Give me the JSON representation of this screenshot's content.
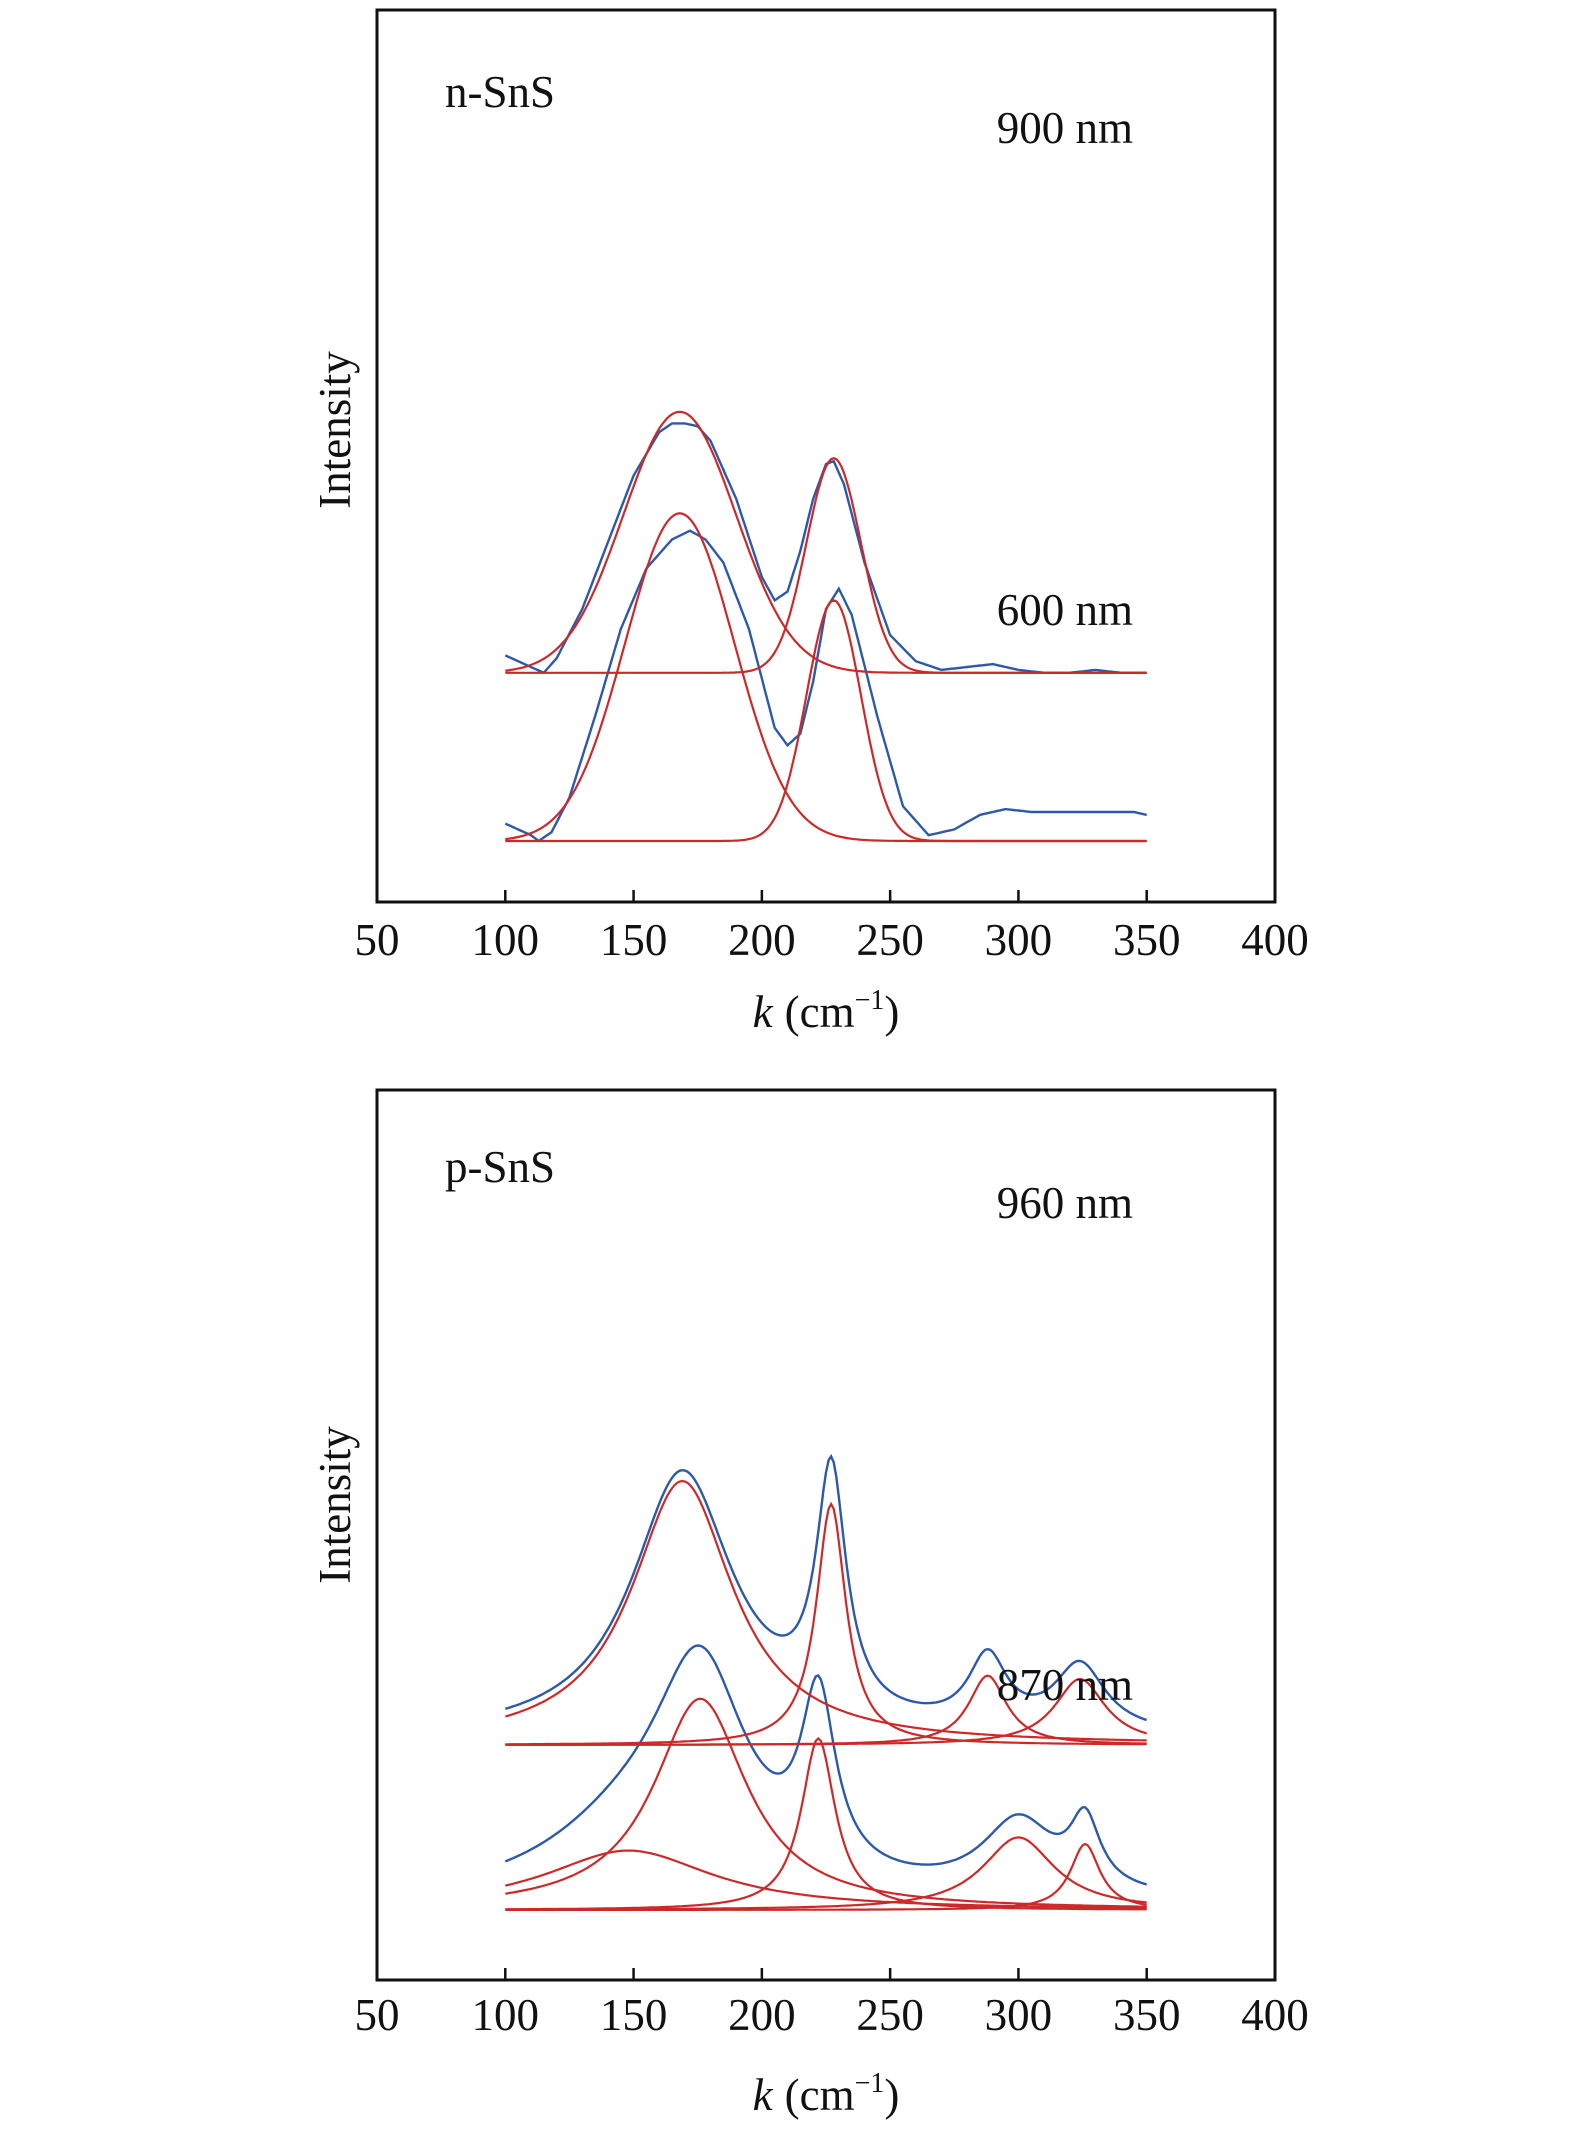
{
  "chart_data": [
    {
      "type": "line",
      "xlabel_italic": "k",
      "xlabel_unit": "(cm",
      "xlabel_exp": "−1",
      "xlabel_close": ")",
      "ylabel": "Intensity",
      "xlim": [
        50,
        400
      ],
      "xticks": [
        50,
        100,
        150,
        200,
        250,
        300,
        350,
        400
      ],
      "tick_labels": [
        "50",
        "100",
        "150",
        "200",
        "250",
        "300",
        "350",
        "400"
      ],
      "sample_label": "n-SnS",
      "colors": {
        "measured": "#2d5aa8",
        "fit": "#cc2a2a",
        "frame": "#111111"
      },
      "spectra": [
        {
          "label": "900 nm",
          "offset": 0.58,
          "x": [
            100,
            105,
            110,
            115,
            120,
            130,
            140,
            150,
            160,
            165,
            170,
            175,
            180,
            190,
            200,
            205,
            210,
            215,
            220,
            225,
            228,
            232,
            240,
            250,
            260,
            270,
            280,
            290,
            300,
            310,
            320,
            330,
            340,
            350
          ],
          "measured": [
            0.06,
            0.04,
            0.02,
            0.0,
            0.05,
            0.22,
            0.45,
            0.68,
            0.83,
            0.86,
            0.86,
            0.85,
            0.8,
            0.6,
            0.33,
            0.25,
            0.28,
            0.42,
            0.6,
            0.72,
            0.73,
            0.65,
            0.38,
            0.13,
            0.04,
            0.01,
            0.02,
            0.03,
            0.01,
            0.0,
            0.0,
            0.01,
            0.0,
            0.0
          ],
          "components": [
            {
              "name": "peak-1",
              "center": 168,
              "height": 0.9,
              "width": 31,
              "shape": "gaussian"
            },
            {
              "name": "peak-2",
              "center": 228,
              "height": 0.74,
              "width": 15,
              "shape": "gaussian"
            }
          ]
        },
        {
          "label": "600 nm",
          "offset": 0.0,
          "x": [
            100,
            105,
            110,
            113,
            118,
            125,
            135,
            145,
            155,
            165,
            172,
            178,
            185,
            195,
            205,
            210,
            215,
            220,
            225,
            230,
            235,
            245,
            255,
            265,
            275,
            285,
            295,
            305,
            315,
            325,
            335,
            345,
            350
          ],
          "measured": [
            0.06,
            0.04,
            0.02,
            0.0,
            0.03,
            0.15,
            0.43,
            0.73,
            0.94,
            1.04,
            1.07,
            1.04,
            0.96,
            0.73,
            0.39,
            0.33,
            0.37,
            0.55,
            0.8,
            0.87,
            0.78,
            0.43,
            0.12,
            0.02,
            0.04,
            0.09,
            0.11,
            0.1,
            0.1,
            0.1,
            0.1,
            0.1,
            0.09
          ],
          "components": [
            {
              "name": "peak-1",
              "center": 168,
              "height": 1.13,
              "width": 30,
              "shape": "gaussian"
            },
            {
              "name": "peak-2",
              "center": 228,
              "height": 0.83,
              "width": 15,
              "shape": "gaussian"
            }
          ]
        }
      ]
    },
    {
      "type": "line",
      "xlabel_italic": "k",
      "xlabel_unit": "(cm",
      "xlabel_exp": "−1",
      "xlabel_close": ")",
      "ylabel": "Intensity",
      "xlim": [
        50,
        400
      ],
      "xticks": [
        50,
        100,
        150,
        200,
        250,
        300,
        350,
        400
      ],
      "tick_labels": [
        "50",
        "100",
        "150",
        "200",
        "250",
        "300",
        "350",
        "400"
      ],
      "sample_label": "p-SnS",
      "colors": {
        "measured": "#2d5aa8",
        "fit": "#cc2a2a",
        "frame": "#111111"
      },
      "spectra": [
        {
          "label": "960 nm",
          "offset": 0.5,
          "components": [
            {
              "name": "peak-1",
              "center": 169,
              "height": 0.8,
              "width": 24,
              "shape": "lorentzian"
            },
            {
              "name": "peak-2",
              "center": 227,
              "height": 0.73,
              "width": 7,
              "shape": "lorentzian"
            },
            {
              "name": "peak-3",
              "center": 288,
              "height": 0.21,
              "width": 9,
              "shape": "lorentzian"
            },
            {
              "name": "peak-4",
              "center": 324,
              "height": 0.2,
              "width": 12,
              "shape": "lorentzian"
            }
          ]
        },
        {
          "label": "870 nm",
          "offset": 0.0,
          "components": [
            {
              "name": "peak-1",
              "center": 148,
              "height": 0.18,
              "width": 40,
              "shape": "lorentzian"
            },
            {
              "name": "peak-2",
              "center": 176,
              "height": 0.64,
              "width": 22,
              "shape": "lorentzian"
            },
            {
              "name": "peak-3",
              "center": 222,
              "height": 0.52,
              "width": 8,
              "shape": "lorentzian"
            },
            {
              "name": "peak-4",
              "center": 300,
              "height": 0.22,
              "width": 17,
              "shape": "lorentzian"
            },
            {
              "name": "peak-5",
              "center": 326,
              "height": 0.2,
              "width": 7,
              "shape": "lorentzian"
            }
          ]
        }
      ]
    }
  ]
}
